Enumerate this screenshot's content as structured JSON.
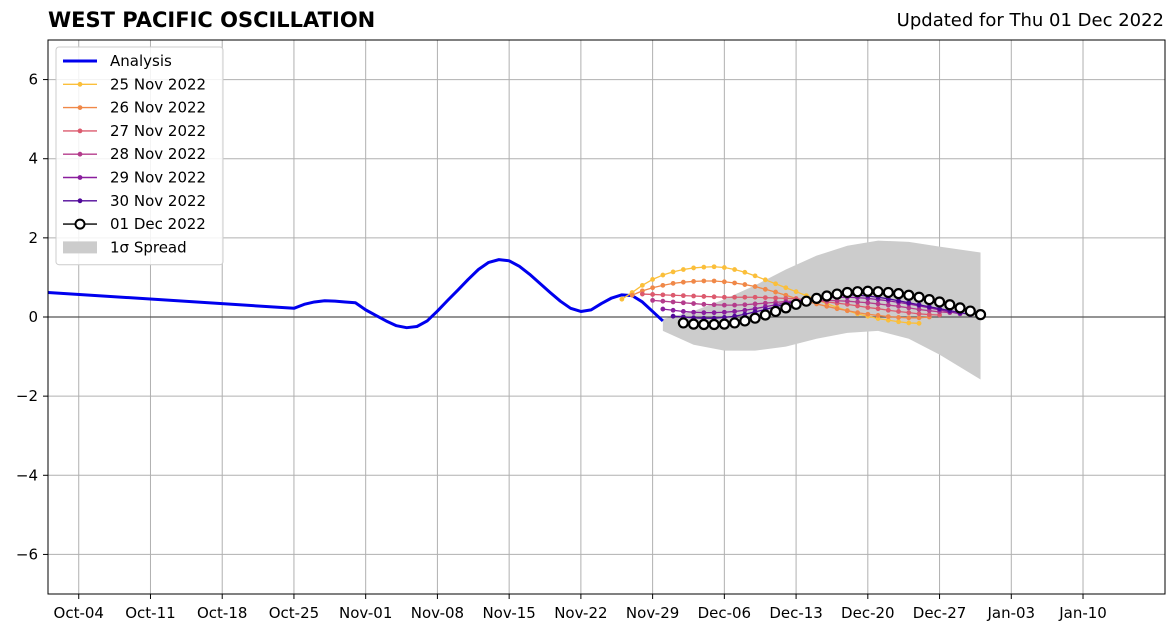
{
  "header": {
    "title": "WEST PACIFIC OSCILLATION",
    "updated": "Updated for Thu 01 Dec 2022"
  },
  "chart_data": {
    "type": "line",
    "title": "WEST PACIFIC OSCILLATION",
    "xlabel": "",
    "ylabel": "",
    "xlim": [
      "2022-10-01",
      "2023-01-18"
    ],
    "ylim": [
      -7,
      7
    ],
    "yticks": [
      -6,
      -4,
      -2,
      0,
      2,
      4,
      6
    ],
    "ytick_labels": [
      "−6",
      "−4",
      "−2",
      "0",
      "2",
      "4",
      "6"
    ],
    "xticks": [
      "2022-10-04",
      "2022-10-11",
      "2022-10-18",
      "2022-10-25",
      "2022-11-01",
      "2022-11-08",
      "2022-11-15",
      "2022-11-22",
      "2022-11-29",
      "2022-12-06",
      "2022-12-13",
      "2022-12-20",
      "2022-12-27",
      "2023-01-03",
      "2023-01-10"
    ],
    "xtick_labels": [
      "Oct-04",
      "Oct-11",
      "Oct-18",
      "Oct-25",
      "Nov-01",
      "Nov-08",
      "Nov-15",
      "Nov-22",
      "Nov-29",
      "Dec-06",
      "Dec-13",
      "Dec-20",
      "Dec-27",
      "Jan-03",
      "Jan-10"
    ],
    "grid": true,
    "legend_position": "top-left",
    "series": [
      {
        "name": "Analysis",
        "color": "#0000ee",
        "style": "line",
        "x": [
          "2022-10-01",
          "2022-10-25",
          "2022-10-26",
          "2022-10-27",
          "2022-10-28",
          "2022-10-29",
          "2022-10-30",
          "2022-10-31",
          "2022-11-01",
          "2022-11-02",
          "2022-11-03",
          "2022-11-04",
          "2022-11-05",
          "2022-11-06",
          "2022-11-07",
          "2022-11-08",
          "2022-11-09",
          "2022-11-10",
          "2022-11-11",
          "2022-11-12",
          "2022-11-13",
          "2022-11-14",
          "2022-11-15",
          "2022-11-16",
          "2022-11-17",
          "2022-11-18",
          "2022-11-19",
          "2022-11-20",
          "2022-11-21",
          "2022-11-22",
          "2022-11-23",
          "2022-11-24",
          "2022-11-25",
          "2022-11-26",
          "2022-11-27",
          "2022-11-28",
          "2022-11-29",
          "2022-11-30"
        ],
        "y": [
          0.62,
          0.22,
          0.32,
          0.38,
          0.41,
          0.4,
          0.38,
          0.36,
          0.18,
          0.04,
          -0.1,
          -0.22,
          -0.27,
          -0.24,
          -0.1,
          0.15,
          0.42,
          0.68,
          0.95,
          1.2,
          1.38,
          1.45,
          1.42,
          1.28,
          1.08,
          0.85,
          0.62,
          0.4,
          0.22,
          0.14,
          0.18,
          0.34,
          0.48,
          0.56,
          0.54,
          0.38,
          0.14,
          -0.1
        ]
      },
      {
        "name": "25 Nov 2022",
        "color": "#fbbf3a",
        "style": "marker-line",
        "x": [
          "2022-11-26",
          "2022-11-27",
          "2022-11-28",
          "2022-11-29",
          "2022-11-30",
          "2022-12-01",
          "2022-12-02",
          "2022-12-03",
          "2022-12-04",
          "2022-12-05",
          "2022-12-06",
          "2022-12-07",
          "2022-12-08",
          "2022-12-09",
          "2022-12-10",
          "2022-12-11",
          "2022-12-12",
          "2022-12-13",
          "2022-12-14",
          "2022-12-15",
          "2022-12-16",
          "2022-12-17",
          "2022-12-18",
          "2022-12-19",
          "2022-12-20",
          "2022-12-21",
          "2022-12-22",
          "2022-12-23",
          "2022-12-24",
          "2022-12-25"
        ],
        "y": [
          0.45,
          0.62,
          0.8,
          0.95,
          1.06,
          1.14,
          1.2,
          1.24,
          1.26,
          1.27,
          1.25,
          1.2,
          1.13,
          1.04,
          0.94,
          0.84,
          0.74,
          0.64,
          0.54,
          0.44,
          0.34,
          0.24,
          0.16,
          0.08,
          0.02,
          -0.04,
          -0.08,
          -0.12,
          -0.15,
          -0.16
        ]
      },
      {
        "name": "26 Nov 2022",
        "color": "#f08848",
        "style": "marker-line",
        "x": [
          "2022-11-27",
          "2022-11-28",
          "2022-11-29",
          "2022-11-30",
          "2022-12-01",
          "2022-12-02",
          "2022-12-03",
          "2022-12-04",
          "2022-12-05",
          "2022-12-06",
          "2022-12-07",
          "2022-12-08",
          "2022-12-09",
          "2022-12-10",
          "2022-12-11",
          "2022-12-12",
          "2022-12-13",
          "2022-12-14",
          "2022-12-15",
          "2022-12-16",
          "2022-12-17",
          "2022-12-18",
          "2022-12-19",
          "2022-12-20",
          "2022-12-21",
          "2022-12-22",
          "2022-12-23",
          "2022-12-24",
          "2022-12-25",
          "2022-12-26"
        ],
        "y": [
          0.55,
          0.66,
          0.74,
          0.8,
          0.85,
          0.88,
          0.9,
          0.91,
          0.91,
          0.89,
          0.86,
          0.82,
          0.77,
          0.7,
          0.63,
          0.55,
          0.47,
          0.4,
          0.33,
          0.27,
          0.21,
          0.16,
          0.11,
          0.07,
          0.04,
          0.01,
          -0.01,
          -0.02,
          -0.02,
          0.0
        ]
      },
      {
        "name": "27 Nov 2022",
        "color": "#dc5a6e",
        "style": "marker-line",
        "x": [
          "2022-11-28",
          "2022-11-29",
          "2022-11-30",
          "2022-12-01",
          "2022-12-02",
          "2022-12-03",
          "2022-12-04",
          "2022-12-05",
          "2022-12-06",
          "2022-12-07",
          "2022-12-08",
          "2022-12-09",
          "2022-12-10",
          "2022-12-11",
          "2022-12-12",
          "2022-12-13",
          "2022-12-14",
          "2022-12-15",
          "2022-12-16",
          "2022-12-17",
          "2022-12-18",
          "2022-12-19",
          "2022-12-20",
          "2022-12-21",
          "2022-12-22",
          "2022-12-23",
          "2022-12-24",
          "2022-12-25",
          "2022-12-26",
          "2022-12-27"
        ],
        "y": [
          0.58,
          0.57,
          0.56,
          0.55,
          0.54,
          0.53,
          0.52,
          0.51,
          0.5,
          0.5,
          0.5,
          0.5,
          0.49,
          0.48,
          0.47,
          0.46,
          0.44,
          0.41,
          0.38,
          0.35,
          0.32,
          0.28,
          0.24,
          0.21,
          0.17,
          0.14,
          0.11,
          0.08,
          0.06,
          0.05
        ]
      },
      {
        "name": "28 Nov 2022",
        "color": "#b43c8c",
        "style": "marker-line",
        "x": [
          "2022-11-29",
          "2022-11-30",
          "2022-12-01",
          "2022-12-02",
          "2022-12-03",
          "2022-12-04",
          "2022-12-05",
          "2022-12-06",
          "2022-12-07",
          "2022-12-08",
          "2022-12-09",
          "2022-12-10",
          "2022-12-11",
          "2022-12-12",
          "2022-12-13",
          "2022-12-14",
          "2022-12-15",
          "2022-12-16",
          "2022-12-17",
          "2022-12-18",
          "2022-12-19",
          "2022-12-20",
          "2022-12-21",
          "2022-12-22",
          "2022-12-23",
          "2022-12-24",
          "2022-12-25",
          "2022-12-26",
          "2022-12-27",
          "2022-12-28"
        ],
        "y": [
          0.42,
          0.4,
          0.38,
          0.36,
          0.34,
          0.32,
          0.31,
          0.3,
          0.3,
          0.31,
          0.33,
          0.35,
          0.37,
          0.39,
          0.41,
          0.42,
          0.42,
          0.42,
          0.41,
          0.4,
          0.38,
          0.36,
          0.33,
          0.3,
          0.27,
          0.23,
          0.19,
          0.16,
          0.13,
          0.11
        ]
      },
      {
        "name": "29 Nov 2022",
        "color": "#8a1e9e",
        "style": "marker-line",
        "x": [
          "2022-11-30",
          "2022-12-01",
          "2022-12-02",
          "2022-12-03",
          "2022-12-04",
          "2022-12-05",
          "2022-12-06",
          "2022-12-07",
          "2022-12-08",
          "2022-12-09",
          "2022-12-10",
          "2022-12-11",
          "2022-12-12",
          "2022-12-13",
          "2022-12-14",
          "2022-12-15",
          "2022-12-16",
          "2022-12-17",
          "2022-12-18",
          "2022-12-19",
          "2022-12-20",
          "2022-12-21",
          "2022-12-22",
          "2022-12-23",
          "2022-12-24",
          "2022-12-25",
          "2022-12-26",
          "2022-12-27",
          "2022-12-28",
          "2022-12-29"
        ],
        "y": [
          0.2,
          0.17,
          0.14,
          0.12,
          0.11,
          0.11,
          0.12,
          0.14,
          0.17,
          0.21,
          0.26,
          0.31,
          0.36,
          0.4,
          0.44,
          0.47,
          0.49,
          0.5,
          0.5,
          0.49,
          0.47,
          0.44,
          0.41,
          0.37,
          0.33,
          0.28,
          0.23,
          0.18,
          0.13,
          0.08
        ]
      },
      {
        "name": "30 Nov 2022",
        "color": "#50089a",
        "style": "marker-line",
        "x": [
          "2022-12-01",
          "2022-12-02",
          "2022-12-03",
          "2022-12-04",
          "2022-12-05",
          "2022-12-06",
          "2022-12-07",
          "2022-12-08",
          "2022-12-09",
          "2022-12-10",
          "2022-12-11",
          "2022-12-12",
          "2022-12-13",
          "2022-12-14",
          "2022-12-15",
          "2022-12-16",
          "2022-12-17",
          "2022-12-18",
          "2022-12-19",
          "2022-12-20",
          "2022-12-21",
          "2022-12-22",
          "2022-12-23",
          "2022-12-24",
          "2022-12-25",
          "2022-12-26",
          "2022-12-27",
          "2022-12-28",
          "2022-12-29",
          "2022-12-30"
        ],
        "y": [
          0.02,
          0.0,
          -0.02,
          -0.03,
          -0.03,
          -0.01,
          0.02,
          0.07,
          0.13,
          0.19,
          0.26,
          0.33,
          0.39,
          0.45,
          0.5,
          0.53,
          0.55,
          0.56,
          0.55,
          0.53,
          0.5,
          0.46,
          0.41,
          0.36,
          0.31,
          0.26,
          0.21,
          0.16,
          0.11,
          0.06
        ]
      },
      {
        "name": "01 Dec 2022",
        "color": "#000000",
        "style": "open-marker-line",
        "x": [
          "2022-12-02",
          "2022-12-03",
          "2022-12-04",
          "2022-12-05",
          "2022-12-06",
          "2022-12-07",
          "2022-12-08",
          "2022-12-09",
          "2022-12-10",
          "2022-12-11",
          "2022-12-12",
          "2022-12-13",
          "2022-12-14",
          "2022-12-15",
          "2022-12-16",
          "2022-12-17",
          "2022-12-18",
          "2022-12-19",
          "2022-12-20",
          "2022-12-21",
          "2022-12-22",
          "2022-12-23",
          "2022-12-24",
          "2022-12-25",
          "2022-12-26",
          "2022-12-27",
          "2022-12-28",
          "2022-12-29",
          "2022-12-30",
          "2022-12-31"
        ],
        "y": [
          -0.15,
          -0.18,
          -0.19,
          -0.19,
          -0.18,
          -0.15,
          -0.1,
          -0.03,
          0.05,
          0.14,
          0.23,
          0.32,
          0.4,
          0.47,
          0.53,
          0.58,
          0.62,
          0.64,
          0.65,
          0.64,
          0.62,
          0.59,
          0.55,
          0.5,
          0.44,
          0.38,
          0.31,
          0.23,
          0.15,
          0.06
        ]
      }
    ],
    "spread": {
      "name": "1σ Spread",
      "color": "#cccccc",
      "x": [
        "2022-11-30",
        "2022-12-03",
        "2022-12-06",
        "2022-12-09",
        "2022-12-12",
        "2022-12-15",
        "2022-12-18",
        "2022-12-21",
        "2022-12-24",
        "2022-12-27",
        "2022-12-31"
      ],
      "upper": [
        -0.05,
        0.15,
        0.45,
        0.8,
        1.2,
        1.55,
        1.8,
        1.93,
        1.9,
        1.78,
        1.63
      ],
      "lower": [
        -0.35,
        -0.7,
        -0.85,
        -0.85,
        -0.75,
        -0.55,
        -0.4,
        -0.35,
        -0.55,
        -0.95,
        -1.58
      ]
    }
  }
}
